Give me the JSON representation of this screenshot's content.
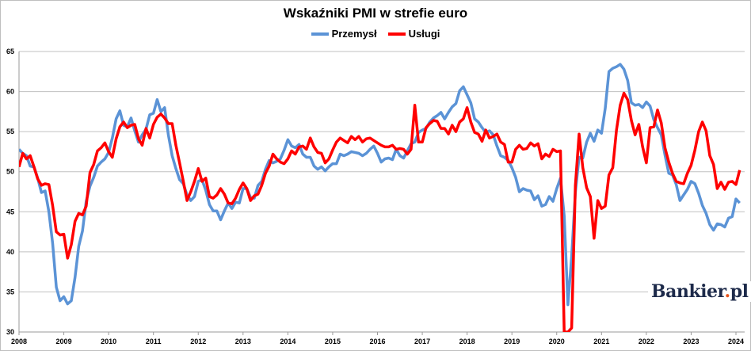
{
  "chart_data": {
    "type": "line",
    "title": "Wskaźniki PMI w strefie euro",
    "xlabel": "",
    "ylabel": "",
    "ylim": [
      30,
      65
    ],
    "yticks": [
      30,
      35,
      40,
      45,
      50,
      55,
      60,
      65
    ],
    "xticks": [
      "2008",
      "2009",
      "2010",
      "2011",
      "2012",
      "2013",
      "2014",
      "2015",
      "2016",
      "2017",
      "2018",
      "2019",
      "2020",
      "2021",
      "2022",
      "2023",
      "2024"
    ],
    "x_start": "2008-01",
    "x_end": "2024-02",
    "frequency": "monthly",
    "grid": true,
    "legend_position": "top-center",
    "series": [
      {
        "name": "Przemysł",
        "color": "#5b93d6",
        "values": [
          52.8,
          52.3,
          52.0,
          50.7,
          50.6,
          49.2,
          47.4,
          47.6,
          45.0,
          41.1,
          35.6,
          33.9,
          34.4,
          33.5,
          33.9,
          36.8,
          40.7,
          42.6,
          46.3,
          48.2,
          49.3,
          50.7,
          51.2,
          51.6,
          52.4,
          54.2,
          56.6,
          57.6,
          55.8,
          55.6,
          56.7,
          55.1,
          53.7,
          54.6,
          55.3,
          57.1,
          57.3,
          59.0,
          57.5,
          58.0,
          54.6,
          52.0,
          50.4,
          49.0,
          48.5,
          47.1,
          46.4,
          46.9,
          48.8,
          49.0,
          47.7,
          45.9,
          45.1,
          45.1,
          44.0,
          45.1,
          46.1,
          45.4,
          46.2,
          46.1,
          47.9,
          47.9,
          46.8,
          46.7,
          48.3,
          48.8,
          50.3,
          51.4,
          51.1,
          51.3,
          51.6,
          52.7,
          54.0,
          53.2,
          53.0,
          53.4,
          52.2,
          51.8,
          51.8,
          50.7,
          50.3,
          50.6,
          50.1,
          50.6,
          51.0,
          51.0,
          52.2,
          52.0,
          52.2,
          52.5,
          52.4,
          52.3,
          52.0,
          52.3,
          52.8,
          53.2,
          52.3,
          51.2,
          51.6,
          51.7,
          51.5,
          52.8,
          52.0,
          51.7,
          52.6,
          53.5,
          53.7,
          54.9,
          55.2,
          55.4,
          56.2,
          56.7,
          57.0,
          57.4,
          56.6,
          57.4,
          58.1,
          58.5,
          60.1,
          60.6,
          59.6,
          58.6,
          56.6,
          56.2,
          55.5,
          54.9,
          55.1,
          54.6,
          53.2,
          52.0,
          51.8,
          51.4,
          50.5,
          49.3,
          47.5,
          47.9,
          47.7,
          47.6,
          46.5,
          47.0,
          45.7,
          45.9,
          46.9,
          46.3,
          47.9,
          49.2,
          44.5,
          33.4,
          39.4,
          47.4,
          51.8,
          51.7,
          53.7,
          54.8,
          53.8,
          55.2,
          54.8,
          57.9,
          62.5,
          62.9,
          63.1,
          63.4,
          62.8,
          61.4,
          58.6,
          58.3,
          58.4,
          58.0,
          58.7,
          58.2,
          56.5,
          55.5,
          54.6,
          52.1,
          49.8,
          49.6,
          48.4,
          46.4,
          47.1,
          47.8,
          48.8,
          48.5,
          47.3,
          45.8,
          44.8,
          43.4,
          42.7,
          43.5,
          43.4,
          43.1,
          44.2,
          44.4,
          46.6,
          46.1
        ]
      },
      {
        "name": "Usługi",
        "color": "#ff0000",
        "values": [
          50.6,
          52.3,
          51.6,
          52.0,
          50.6,
          49.1,
          48.3,
          48.5,
          48.4,
          45.8,
          42.5,
          42.1,
          42.2,
          39.2,
          40.9,
          43.8,
          44.8,
          44.6,
          45.7,
          49.9,
          50.9,
          52.6,
          53.0,
          53.6,
          52.5,
          51.8,
          54.1,
          55.6,
          56.2,
          55.5,
          55.8,
          55.9,
          54.1,
          53.3,
          55.4,
          54.2,
          55.9,
          56.8,
          57.2,
          56.7,
          56.0,
          56.0,
          53.3,
          51.1,
          48.8,
          46.4,
          47.5,
          48.8,
          50.4,
          48.8,
          49.2,
          46.9,
          46.7,
          47.1,
          47.9,
          47.2,
          46.1,
          46.0,
          46.7,
          47.8,
          48.6,
          47.9,
          46.4,
          47.0,
          47.2,
          48.3,
          49.8,
          50.7,
          52.2,
          51.6,
          51.2,
          51.0,
          51.6,
          52.6,
          52.2,
          53.1,
          53.2,
          52.8,
          54.2,
          53.1,
          52.4,
          52.3,
          51.1,
          51.6,
          52.7,
          53.7,
          54.2,
          53.9,
          53.6,
          54.4,
          54.0,
          54.4,
          53.7,
          54.1,
          54.2,
          53.9,
          53.6,
          53.3,
          53.1,
          53.1,
          53.3,
          52.8,
          52.9,
          52.8,
          52.2,
          52.8,
          58.3,
          53.7,
          53.7,
          55.5,
          56.0,
          56.4,
          56.3,
          55.4,
          55.4,
          54.7,
          55.8,
          55.0,
          56.2,
          56.6,
          58.0,
          56.2,
          54.9,
          54.7,
          53.8,
          55.2,
          54.2,
          54.4,
          54.7,
          53.7,
          53.4,
          51.2,
          51.2,
          52.8,
          53.3,
          52.8,
          52.9,
          53.6,
          53.2,
          53.5,
          51.6,
          52.2,
          51.9,
          52.8,
          52.5,
          52.6,
          26.4,
          12.0,
          30.5,
          48.3,
          54.7,
          50.5,
          48.0,
          46.9,
          41.7,
          46.4,
          45.4,
          45.7,
          49.6,
          50.5,
          55.2,
          58.3,
          59.8,
          59.0,
          56.4,
          54.6,
          55.9,
          53.1,
          51.1,
          55.5,
          55.6,
          57.7,
          56.1,
          53.0,
          51.2,
          49.8,
          48.8,
          48.6,
          48.5,
          49.8,
          50.8,
          52.7,
          55.0,
          56.2,
          55.1,
          52.0,
          50.9,
          47.9,
          48.7,
          47.8,
          48.7,
          48.8,
          48.4,
          50.2
        ]
      }
    ]
  },
  "watermark": {
    "brand": "Bankier",
    "dot": ".",
    "tld": "pl"
  }
}
